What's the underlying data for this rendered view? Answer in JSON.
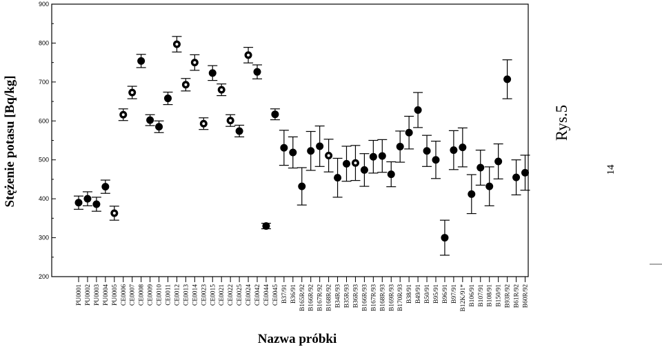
{
  "chart_data": {
    "type": "scatter",
    "title": "",
    "xlabel": "Nazwa próbki",
    "ylabel": "Stężenie potasu [Bq/kg]",
    "ylim": [
      200,
      900
    ],
    "yticks": [
      200,
      300,
      400,
      500,
      600,
      700,
      800,
      900
    ],
    "grid": false,
    "legend": "none",
    "error_bars": true,
    "categories": [
      "PU0001",
      "PU0002",
      "PU0003",
      "PU0004",
      "PU0005",
      "CE0006",
      "CE0007",
      "CE0008",
      "CE0009",
      "CE0010",
      "CE0011",
      "CE0012",
      "CE0013",
      "CE0014",
      "CE0023",
      "CE0015",
      "CE0021",
      "CE0022",
      "CE0025",
      "CE0024",
      "CE0042",
      "CE0044",
      "CE0045",
      "B37/91",
      "B36/91",
      "B165R/92",
      "B166R/92",
      "B167R/92",
      "B168R/92",
      "B34R/93",
      "B35R/93",
      "B36R/93",
      "B166R/93",
      "B167R/93",
      "B168R/93",
      "B169R/93",
      "B170R/93",
      "B38/91",
      "B49/91",
      "B50/91",
      "B95/91",
      "B96/91",
      "B97/91",
      "B12K/91*",
      "B106/91",
      "B107/91",
      "B108/91",
      "B150/91",
      "B93R/92",
      "B61R/92",
      "B60R/92"
    ],
    "values": [
      390,
      400,
      386,
      431,
      363,
      616,
      673,
      754,
      602,
      585,
      658,
      797,
      693,
      750,
      593,
      723,
      680,
      601,
      574,
      769,
      726,
      330,
      617,
      531,
      519,
      432,
      523,
      535,
      511,
      454,
      490,
      492,
      474,
      508,
      510,
      463,
      534,
      570,
      628,
      523,
      500,
      300,
      525,
      532,
      412,
      480,
      432,
      496,
      707,
      455,
      467
    ],
    "errors": [
      17,
      18,
      18,
      17,
      18,
      15,
      16,
      17,
      14,
      15,
      16,
      20,
      16,
      20,
      15,
      19,
      15,
      15,
      15,
      20,
      18,
      7,
      14,
      45,
      40,
      48,
      50,
      52,
      42,
      50,
      45,
      45,
      42,
      42,
      42,
      32,
      40,
      42,
      45,
      40,
      48,
      45,
      50,
      50,
      50,
      45,
      50,
      45,
      50,
      45,
      45
    ],
    "hollow_markers": [
      4,
      5,
      6,
      11,
      12,
      13,
      14,
      16,
      17,
      19,
      28,
      31
    ]
  },
  "annotations": {
    "caption": "Rys.5",
    "page_number": "14"
  }
}
